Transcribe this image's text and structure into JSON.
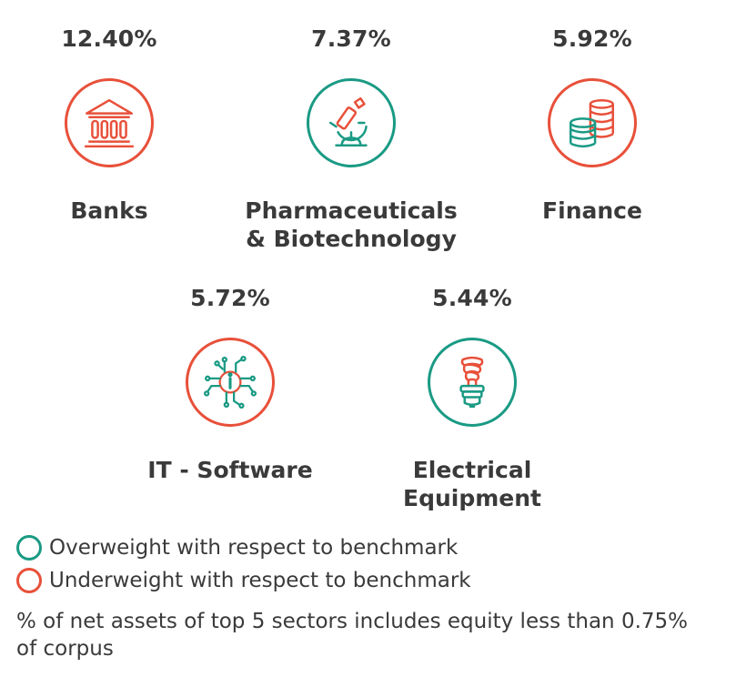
{
  "colors": {
    "overweight": "#1a9a84",
    "underweight": "#e8503a"
  },
  "sectors": [
    {
      "name": "Banks",
      "percent": "12.40%",
      "weight": "underweight",
      "icon": "bank-building-icon"
    },
    {
      "name": "Pharmaceuticals\n& Biotechnology",
      "percent": "7.37%",
      "weight": "overweight",
      "icon": "microscope-icon"
    },
    {
      "name": "Finance",
      "percent": "5.92%",
      "weight": "underweight",
      "icon": "coin-stacks-icon"
    },
    {
      "name": "IT - Software",
      "percent": "5.72%",
      "weight": "underweight",
      "icon": "circuit-chip-icon"
    },
    {
      "name": "Electrical\nEquipment",
      "percent": "5.44%",
      "weight": "overweight",
      "icon": "light-bulb-icon"
    }
  ],
  "legend": {
    "overweight_label": "Overweight with respect to benchmark",
    "underweight_label": "Underweight with respect to benchmark"
  },
  "note": "% of net assets of top 5 sectors includes equity less than 0.75% of corpus"
}
